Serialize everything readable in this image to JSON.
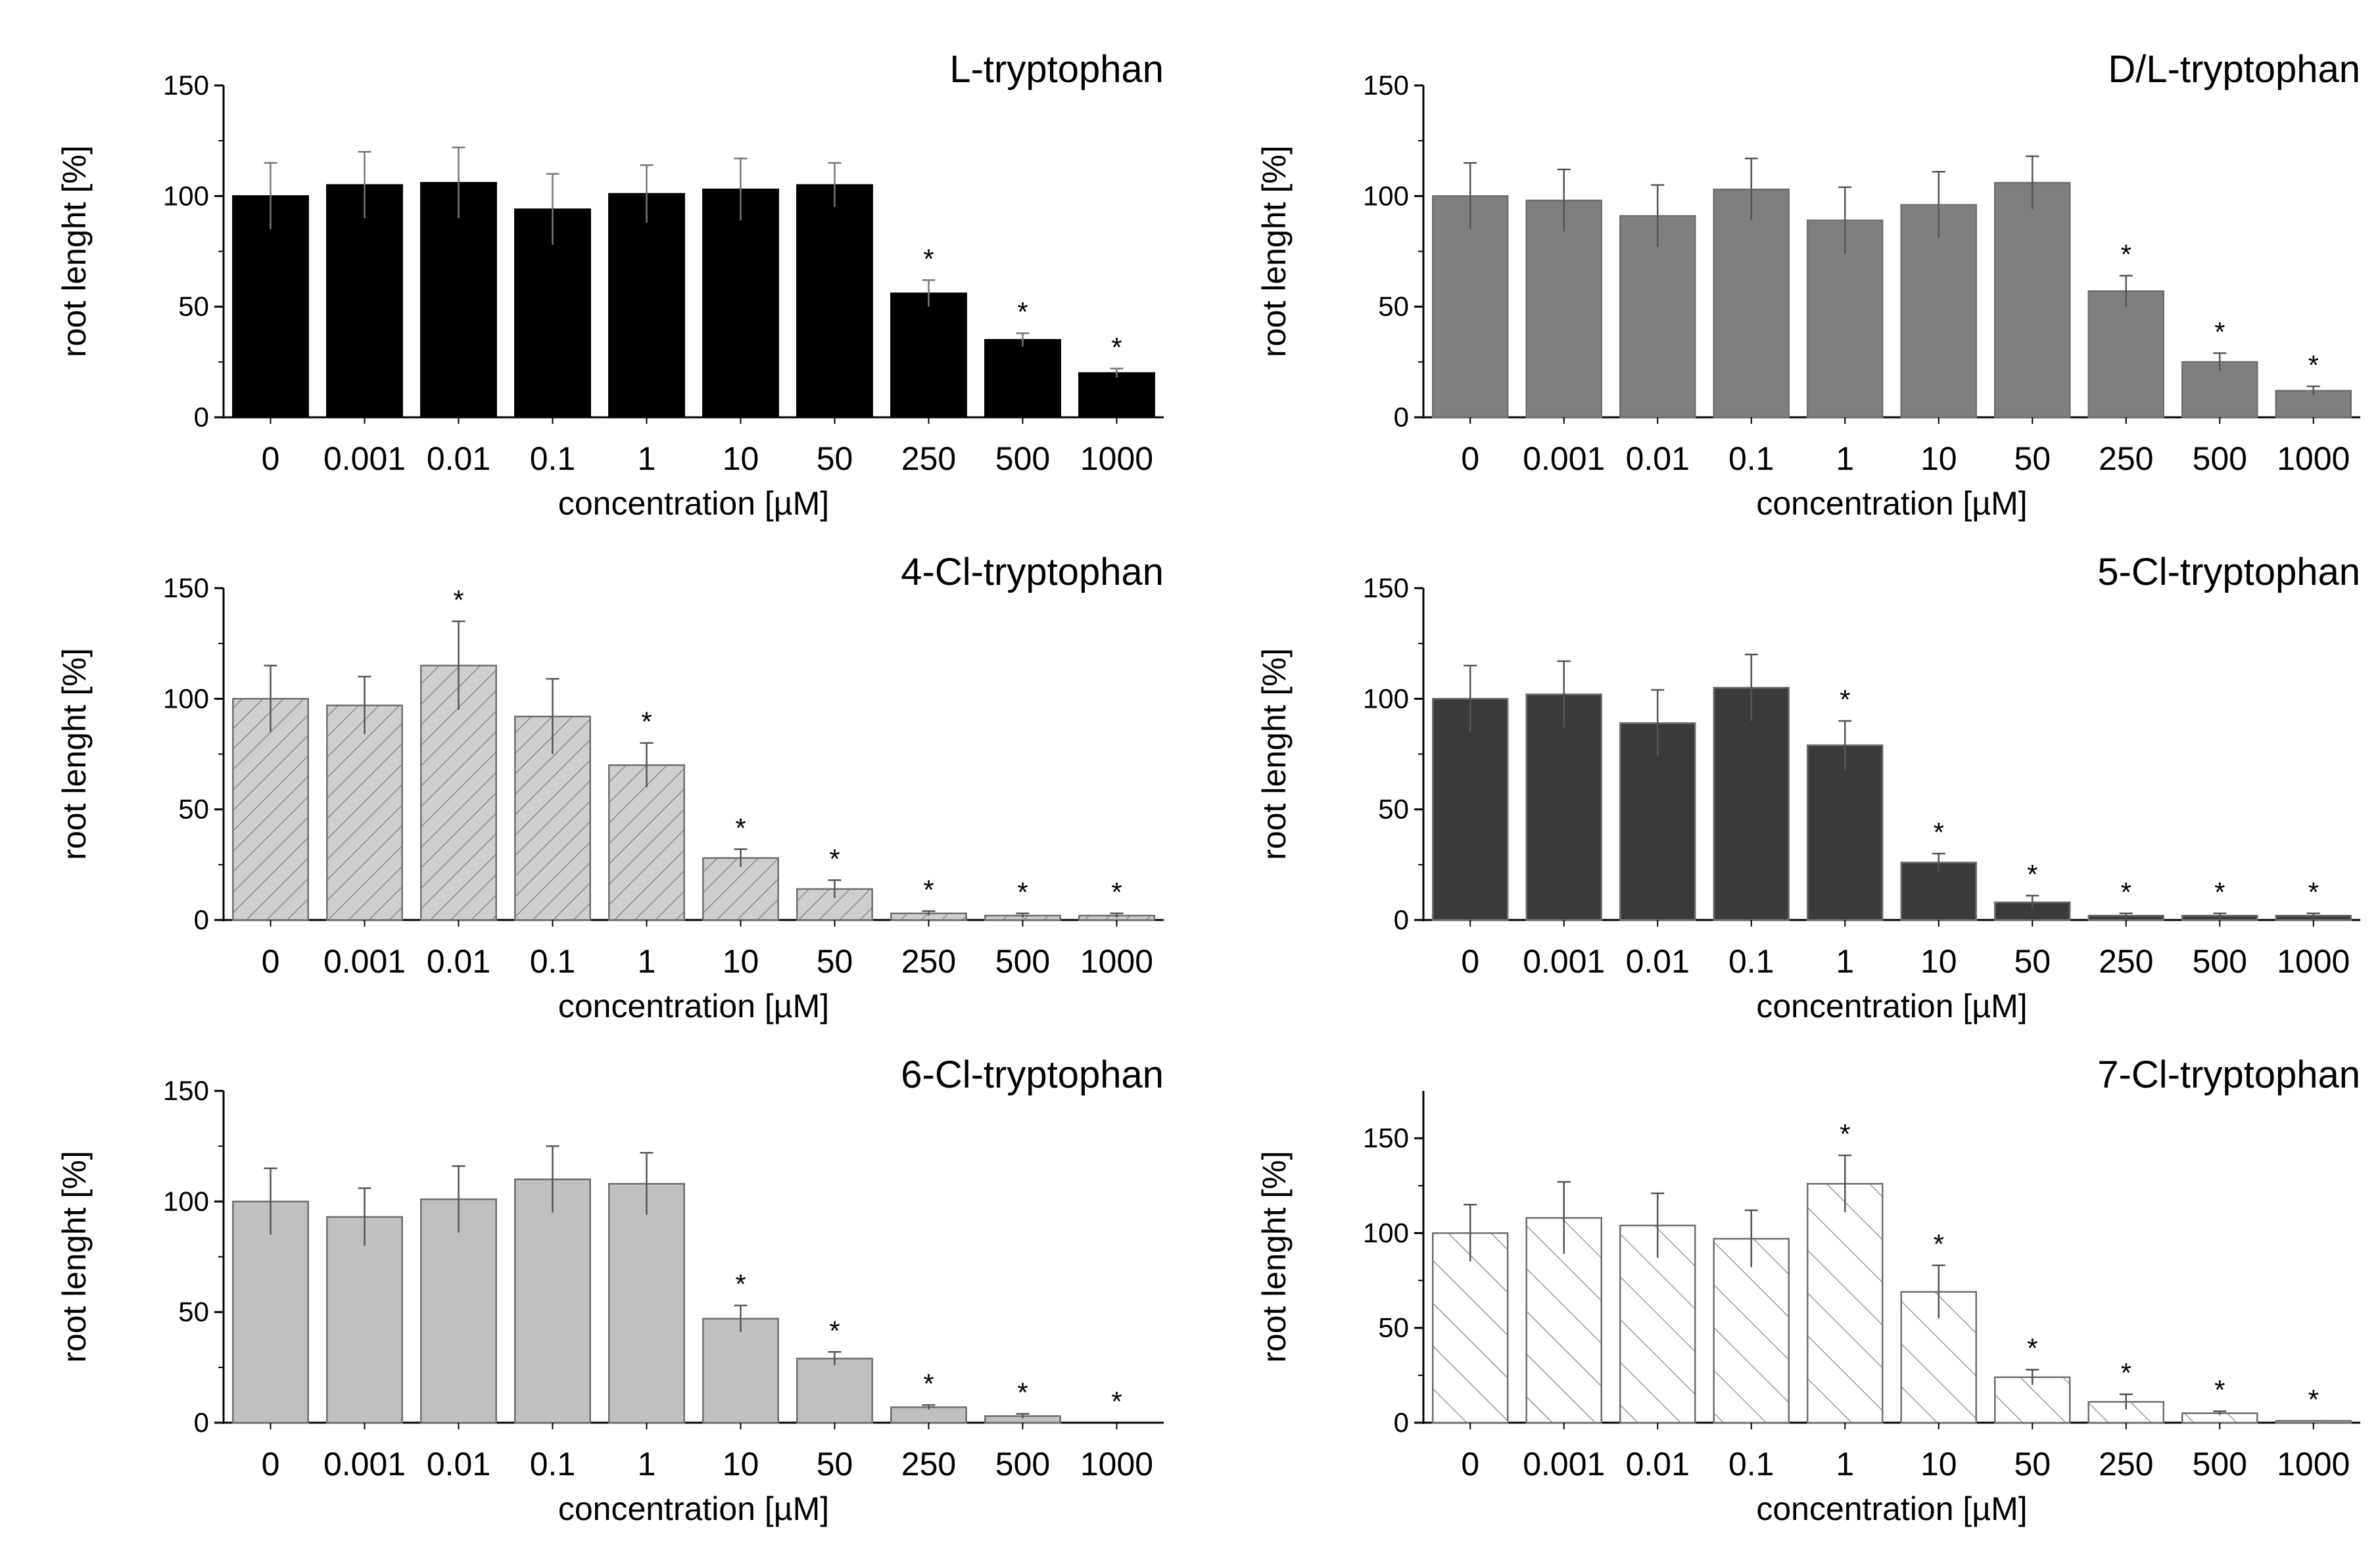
{
  "chart_data": [
    {
      "type": "bar",
      "title": "L-tryptophan",
      "xlabel": "concentration [µM]",
      "ylabel": "root lenght [%]",
      "ylim": [
        0,
        150
      ],
      "yticks": [
        "0",
        "50",
        "100",
        "150"
      ],
      "categories": [
        "0",
        "0.001",
        "0.01",
        "0.1",
        "1",
        "10",
        "50",
        "250",
        "500",
        "1000"
      ],
      "values": [
        100,
        105,
        106,
        94,
        101,
        103,
        105,
        56,
        35,
        20
      ],
      "errors": [
        15,
        15,
        16,
        16,
        13,
        14,
        10,
        6,
        3,
        2
      ],
      "significant": [
        false,
        false,
        false,
        false,
        false,
        false,
        false,
        true,
        true,
        true
      ],
      "significance_marker": "*",
      "fill": "#000000",
      "pattern": "solid"
    },
    {
      "type": "bar",
      "title": "D/L-tryptophan",
      "xlabel": "concentration [µM]",
      "ylabel": "root lenght [%]",
      "ylim": [
        0,
        150
      ],
      "yticks": [
        "0",
        "50",
        "100",
        "150"
      ],
      "categories": [
        "0",
        "0.001",
        "0.01",
        "0.1",
        "1",
        "10",
        "50",
        "250",
        "500",
        "1000"
      ],
      "values": [
        100,
        98,
        91,
        103,
        89,
        96,
        106,
        57,
        25,
        12
      ],
      "errors": [
        15,
        14,
        14,
        14,
        15,
        15,
        12,
        7,
        4,
        2
      ],
      "significant": [
        false,
        false,
        false,
        false,
        false,
        false,
        false,
        true,
        true,
        true
      ],
      "significance_marker": "*",
      "fill": "#7f7f7f",
      "pattern": "solid"
    },
    {
      "type": "bar",
      "title": "4-Cl-tryptophan",
      "xlabel": "concentration [µM]",
      "ylabel": "root lenght [%]",
      "ylim": [
        0,
        150
      ],
      "yticks": [
        "0",
        "50",
        "100",
        "150"
      ],
      "categories": [
        "0",
        "0.001",
        "0.01",
        "0.1",
        "1",
        "10",
        "50",
        "250",
        "500",
        "1000"
      ],
      "values": [
        100,
        97,
        115,
        92,
        70,
        28,
        14,
        3,
        2,
        2
      ],
      "errors": [
        15,
        13,
        20,
        17,
        10,
        4,
        4,
        1,
        1,
        1
      ],
      "significant": [
        false,
        false,
        true,
        false,
        true,
        true,
        true,
        true,
        true,
        true
      ],
      "significance_marker": "*",
      "fill": "#c8c8c8",
      "pattern": "hatch-fine"
    },
    {
      "type": "bar",
      "title": "5-Cl-tryptophan",
      "xlabel": "concentration [µM]",
      "ylabel": "root lenght [%]",
      "ylim": [
        0,
        150
      ],
      "yticks": [
        "0",
        "50",
        "100",
        "150"
      ],
      "categories": [
        "0",
        "0.001",
        "0.01",
        "0.1",
        "1",
        "10",
        "50",
        "250",
        "500",
        "1000"
      ],
      "values": [
        100,
        102,
        89,
        105,
        79,
        26,
        8,
        2,
        2,
        2
      ],
      "errors": [
        15,
        15,
        15,
        15,
        11,
        4,
        3,
        1,
        1,
        1
      ],
      "significant": [
        false,
        false,
        false,
        false,
        true,
        true,
        true,
        true,
        true,
        true
      ],
      "significance_marker": "*",
      "fill": "#3a3a3a",
      "pattern": "solid"
    },
    {
      "type": "bar",
      "title": "6-Cl-tryptophan",
      "xlabel": "concentration [µM]",
      "ylabel": "root lenght [%]",
      "ylim": [
        0,
        150
      ],
      "yticks": [
        "0",
        "50",
        "100",
        "150"
      ],
      "categories": [
        "0",
        "0.001",
        "0.01",
        "0.1",
        "1",
        "10",
        "50",
        "250",
        "500",
        "1000"
      ],
      "values": [
        100,
        93,
        101,
        110,
        108,
        47,
        29,
        7,
        3,
        0
      ],
      "errors": [
        15,
        13,
        15,
        15,
        14,
        6,
        3,
        1,
        1,
        0
      ],
      "significant": [
        false,
        false,
        false,
        false,
        false,
        true,
        true,
        true,
        true,
        true
      ],
      "significance_marker": "*",
      "fill": "#c0c0c0",
      "pattern": "solid"
    },
    {
      "type": "bar",
      "title": "7-Cl-tryptophan",
      "xlabel": "concentration [µM]",
      "ylabel": "root lenght [%]",
      "ylim": [
        0,
        175
      ],
      "yticks": [
        "0",
        "50",
        "100",
        "150"
      ],
      "categories": [
        "0",
        "0.001",
        "0.01",
        "0.1",
        "1",
        "10",
        "50",
        "250",
        "500",
        "1000"
      ],
      "values": [
        100,
        108,
        104,
        97,
        126,
        69,
        24,
        11,
        5,
        1
      ],
      "errors": [
        15,
        19,
        17,
        15,
        15,
        14,
        4,
        4,
        1,
        0
      ],
      "significant": [
        false,
        false,
        false,
        false,
        true,
        true,
        true,
        true,
        true,
        true
      ],
      "significance_marker": "*",
      "fill": "#ffffff",
      "pattern": "hatch-wide"
    }
  ]
}
